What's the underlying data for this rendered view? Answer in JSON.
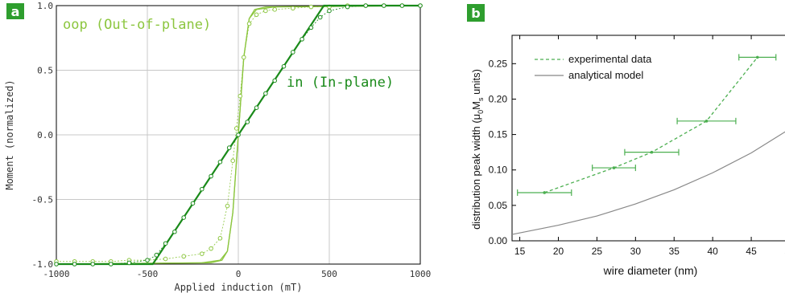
{
  "colors": {
    "oop": "#8cc63f",
    "in": "#1a8a1a",
    "experimental": "#4caf50",
    "model": "#888888",
    "panel_tag": "#2e9e2e",
    "grid": "#c8c8c8"
  },
  "chart_data": [
    {
      "type": "line",
      "panel": "a",
      "xlabel": "Applied induction (mT)",
      "ylabel": "Moment (normalized)",
      "xlim": [
        -1000,
        1000
      ],
      "ylim": [
        -1.0,
        1.0
      ],
      "x_ticks": [
        "-1000",
        "-500",
        "0",
        "500",
        "1000"
      ],
      "y_ticks": [
        "1.0",
        "0.5",
        "0.0",
        "-0.5",
        "-1.0"
      ],
      "grid": true,
      "annotations": [
        "oop (Out-of-plane)",
        "in (In-plane)"
      ],
      "series": [
        {
          "name": "oop (Out-of-plane)",
          "style": "solid thin, two branches",
          "branch_up": {
            "x": [
              -1000,
              -200,
              -100,
              -60,
              -30,
              0,
              30,
              60,
              90,
              150,
              1000
            ],
            "y": [
              -1.0,
              -0.99,
              -0.97,
              -0.9,
              -0.6,
              0.0,
              0.6,
              0.9,
              0.97,
              0.99,
              1.0
            ]
          },
          "branch_down": {
            "x": [
              -1000,
              -150,
              -90,
              -60,
              -30,
              0,
              30,
              60,
              100,
              200,
              1000
            ],
            "y": [
              -1.0,
              -0.99,
              -0.97,
              -0.9,
              -0.6,
              0.0,
              0.6,
              0.9,
              0.97,
              0.99,
              1.0
            ]
          }
        },
        {
          "name": "oop (Out-of-plane) data",
          "style": "open circles",
          "x": [
            -1000,
            -900,
            -800,
            -700,
            -600,
            -500,
            -400,
            -300,
            -200,
            -150,
            -100,
            -60,
            -30,
            -10,
            10,
            30,
            60,
            100,
            150,
            200,
            300,
            400,
            500,
            600,
            700,
            800,
            900,
            1000
          ],
          "y": [
            -0.98,
            -0.98,
            -0.98,
            -0.98,
            -0.97,
            -0.97,
            -0.96,
            -0.94,
            -0.92,
            -0.88,
            -0.8,
            -0.55,
            -0.2,
            0.05,
            0.3,
            0.6,
            0.86,
            0.93,
            0.96,
            0.97,
            0.98,
            0.99,
            0.99,
            1.0,
            1.0,
            1.0,
            1.0,
            1.0
          ]
        },
        {
          "name": "in (In-plane)",
          "style": "thick solid",
          "x": [
            -1000,
            -470,
            0,
            470,
            1000
          ],
          "y": [
            -1.0,
            -1.0,
            0.0,
            1.0,
            1.0
          ]
        },
        {
          "name": "in (In-plane) data",
          "style": "open circles dashed",
          "x": [
            -1000,
            -900,
            -800,
            -700,
            -600,
            -500,
            -450,
            -400,
            -350,
            -300,
            -250,
            -200,
            -150,
            -100,
            -50,
            0,
            50,
            100,
            150,
            200,
            250,
            300,
            350,
            400,
            450,
            500,
            600,
            700,
            800,
            900,
            1000
          ],
          "y": [
            -1.0,
            -1.0,
            -1.0,
            -1.0,
            -0.99,
            -0.97,
            -0.93,
            -0.84,
            -0.75,
            -0.64,
            -0.53,
            -0.42,
            -0.32,
            -0.21,
            -0.1,
            0.0,
            0.1,
            0.21,
            0.32,
            0.42,
            0.53,
            0.64,
            0.74,
            0.83,
            0.91,
            0.96,
            0.99,
            1.0,
            1.0,
            1.0,
            1.0
          ]
        }
      ]
    },
    {
      "type": "line",
      "panel": "b",
      "xlabel": "wire diameter (nm)",
      "ylabel": "distribution peak width (μ0Ms units)",
      "xlim": [
        14,
        50
      ],
      "ylim": [
        0.0,
        0.29
      ],
      "x_ticks": [
        "15",
        "20",
        "25",
        "30",
        "35",
        "40",
        "45",
        "50"
      ],
      "y_ticks": [
        "0.25",
        "0.20",
        "0.15",
        "0.10",
        "0.05",
        "0.00"
      ],
      "grid": false,
      "legend_position": "top-left",
      "series": [
        {
          "name": "experimental data",
          "style": "dashed with horizontal error bars",
          "x": [
            18.2,
            27.2,
            32.1,
            39.2,
            45.8
          ],
          "y": [
            0.068,
            0.103,
            0.125,
            0.169,
            0.259
          ],
          "x_error": [
            3.5,
            2.8,
            3.5,
            3.8,
            2.4
          ]
        },
        {
          "name": "analytical model",
          "style": "solid",
          "x": [
            14,
            20,
            25,
            30,
            35,
            40,
            45,
            50
          ],
          "y": [
            0.009,
            0.022,
            0.035,
            0.052,
            0.072,
            0.096,
            0.124,
            0.158
          ]
        }
      ]
    }
  ],
  "panel_a": {
    "tag": "a",
    "xlabel": "Applied induction (mT)",
    "ylabel": "Moment (normalized)",
    "label_oop": "oop (Out-of-plane)",
    "label_in": "in (In-plane)"
  },
  "panel_b": {
    "tag": "b",
    "xlabel": "wire diameter (nm)",
    "ylabel_main": "distribution peak width (",
    "ylabel_mu": "μ",
    "ylabel_sub0": "0",
    "ylabel_M": "M",
    "ylabel_subs": "s",
    "ylabel_tail": " units)",
    "legend_experimental": "experimental data",
    "legend_model": "analytical model"
  }
}
